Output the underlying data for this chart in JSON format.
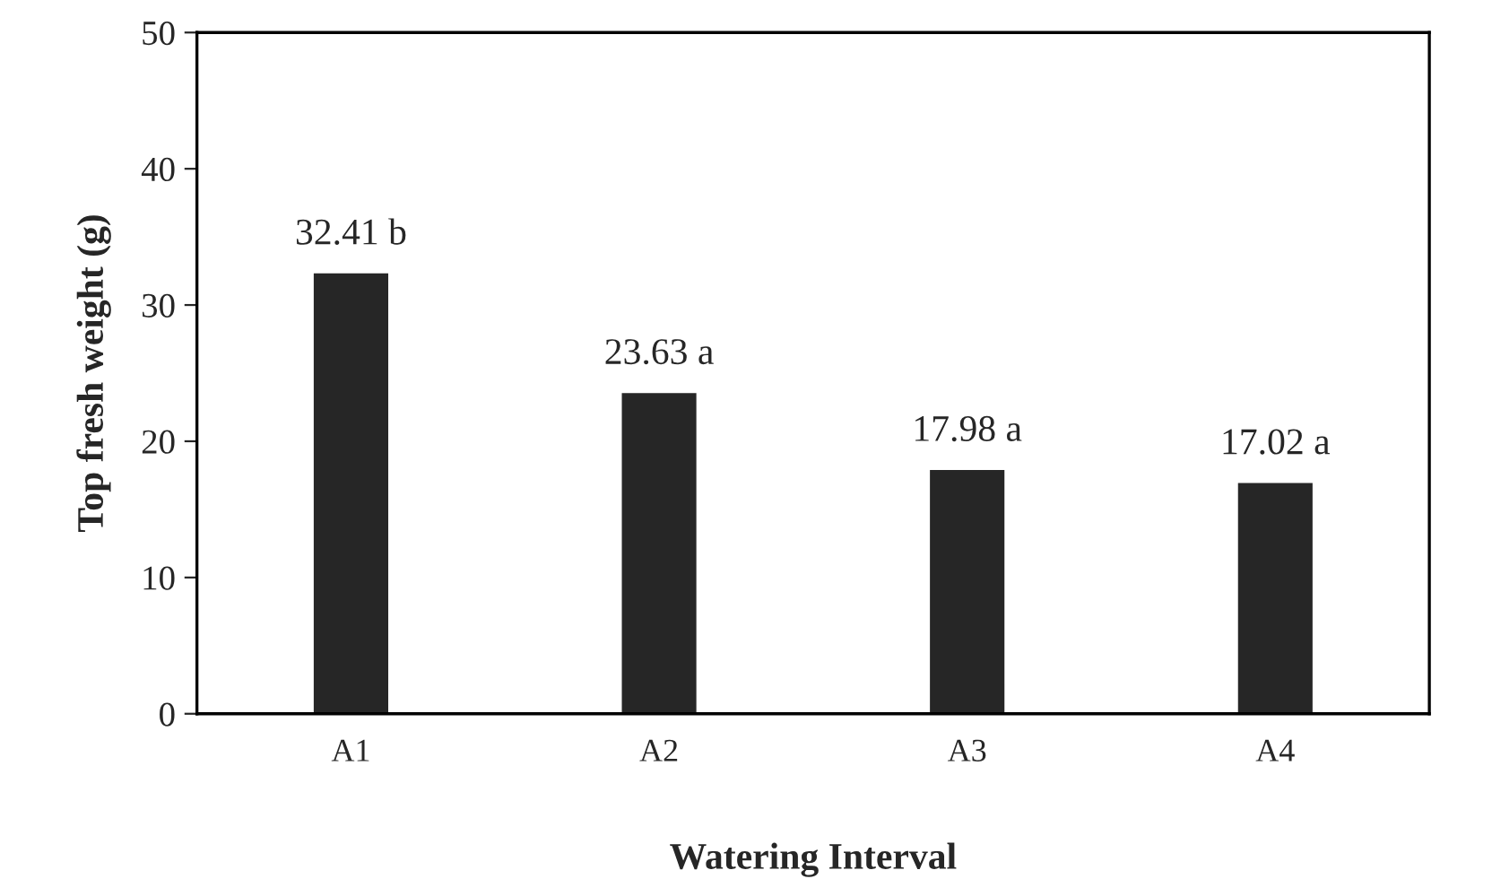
{
  "chart_data": {
    "type": "bar",
    "xlabel": "Watering Interval",
    "ylabel": "Top fresh weight (g)",
    "categories": [
      "A1",
      "A2",
      "A3",
      "A4"
    ],
    "values": [
      32.41,
      23.63,
      17.98,
      17.02
    ],
    "value_labels": [
      "32.41 b",
      "23.63 a",
      "17.98 a",
      "17.02 a"
    ],
    "color": "#262626",
    "ylim": [
      0,
      50
    ],
    "yticks": [
      0,
      10,
      20,
      30,
      40,
      50
    ],
    "grid": false
  }
}
